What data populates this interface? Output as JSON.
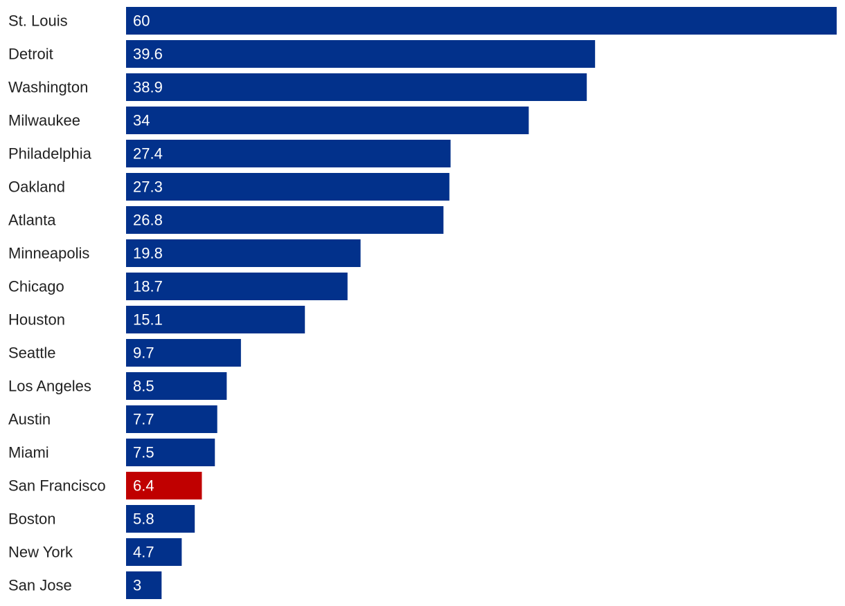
{
  "chart_data": {
    "type": "bar",
    "orientation": "horizontal",
    "title": "",
    "xlabel": "",
    "ylabel": "",
    "grid": false,
    "legend": "none",
    "xlim": [
      0,
      60
    ],
    "categories": [
      "St. Louis",
      "Detroit",
      "Washington",
      "Milwaukee",
      "Philadelphia",
      "Oakland",
      "Atlanta",
      "Minneapolis",
      "Chicago",
      "Houston",
      "Seattle",
      "Los Angeles",
      "Austin",
      "Miami",
      "San Francisco",
      "Boston",
      "New York",
      "San Jose"
    ],
    "values": [
      60,
      39.6,
      38.9,
      34,
      27.4,
      27.3,
      26.8,
      19.8,
      18.7,
      15.1,
      9.7,
      8.5,
      7.7,
      7.5,
      6.4,
      5.8,
      4.7,
      3
    ],
    "value_labels": [
      "60",
      "39.6",
      "38.9",
      "34",
      "27.4",
      "27.3",
      "26.8",
      "19.8",
      "18.7",
      "15.1",
      "9.7",
      "8.5",
      "7.7",
      "7.5",
      "6.4",
      "5.8",
      "4.7",
      "3"
    ],
    "highlight_category": "San Francisco",
    "colors": {
      "bar": "#02318b",
      "highlight": "#c00000",
      "value_text": "#ffffff",
      "category_text": "#222222"
    }
  }
}
